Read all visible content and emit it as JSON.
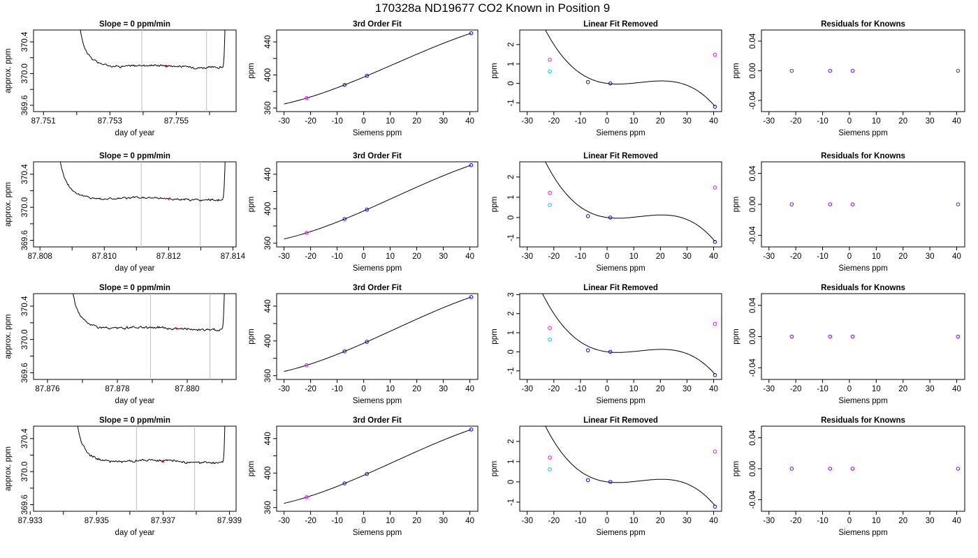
{
  "title": "170328a     ND19677   CO2 Known in Position  9",
  "colors": {
    "trace": "#000000",
    "window_line": "#bebebe",
    "fit_line": "#000000",
    "point_blue": "#0000ff",
    "point_magenta": "#ff00ff",
    "point_cyan": "#00bfff",
    "point_red": "#ff0000",
    "residual_point": "#7f00ff"
  },
  "chart_data": [
    {
      "type": "line",
      "row": 0,
      "panel": "trace",
      "title": "Slope =  0  ppm/min",
      "xlabel": "day of year",
      "ylabel": "approx. ppm",
      "xlim": [
        87.7507,
        87.7568
      ],
      "ylim": [
        369.52,
        370.55
      ],
      "xticks": [
        87.751,
        87.752,
        87.753,
        87.754,
        87.755,
        87.756
      ],
      "xticklabels": [
        "87.751",
        "",
        "87.753",
        "",
        "87.755",
        ""
      ],
      "yticks": [
        369.6,
        369.8,
        370.0,
        370.2,
        370.4
      ],
      "yticklabels": [
        "369.6",
        "",
        "370.0",
        "",
        "370.4"
      ],
      "x_start": 87.752,
      "x_end": 87.7565,
      "window": [
        87.75396,
        87.75591
      ],
      "mean_value": 370.09,
      "mean_x": 87.7547
    },
    {
      "type": "scatter",
      "row": 0,
      "panel": "fit",
      "title": "3rd Order Fit",
      "xlabel": "Siemens ppm",
      "ylabel": "ppm",
      "xlim": [
        -32.8,
        43.0
      ],
      "ylim": [
        355.7,
        454.4
      ],
      "xticks": [
        -30,
        -20,
        -10,
        0,
        10,
        20,
        30,
        40
      ],
      "yticks": [
        360,
        380,
        400,
        420,
        440
      ],
      "yticklabels": [
        "360",
        "",
        "400",
        "",
        "440"
      ],
      "x": [
        -21.5,
        -7.2,
        1.2,
        40.5
      ],
      "y": [
        372.0,
        388.0,
        399.0,
        450.5
      ],
      "point_colors": [
        "magenta",
        "blue",
        "blue",
        "blue"
      ],
      "curve_x_range": [
        -30,
        40.5
      ]
    },
    {
      "type": "scatter",
      "row": 0,
      "panel": "linear",
      "title": "Linear Fit Removed",
      "xlabel": "Siemens ppm",
      "ylabel": "ppm",
      "xlim": [
        -32.8,
        43.0
      ],
      "ylim": [
        -1.45,
        2.75
      ],
      "xticks": [
        -30,
        -20,
        -10,
        0,
        10,
        20,
        30,
        40
      ],
      "yticks": [
        -1,
        0,
        1,
        2
      ],
      "x": [
        -21.5,
        -21.5,
        -7.2,
        1.2,
        40.5,
        40.5
      ],
      "y": [
        1.22,
        0.62,
        0.07,
        0.0,
        -1.2,
        1.48
      ],
      "point_colors": [
        "magenta",
        "cyan",
        "blue",
        "blue",
        "blue",
        "magenta"
      ],
      "curve": {
        "c1": -0.01786,
        "c2": 0.002667,
        "c3": -7.27e-05,
        "x_range": [
          -30,
          40.5
        ]
      }
    },
    {
      "type": "scatter",
      "row": 0,
      "panel": "residuals",
      "title": "Residuals for Knowns",
      "xlabel": "Siemens ppm",
      "ylabel": "ppm",
      "xlim": [
        -32.8,
        43.0
      ],
      "ylim": [
        -0.055,
        0.055
      ],
      "xticks": [
        -30,
        -20,
        -10,
        0,
        10,
        20,
        30,
        40
      ],
      "yticks": [
        -0.04,
        0.0,
        0.04
      ],
      "yticklabels": [
        "-0.04",
        "0.00",
        "0.04"
      ],
      "x": [
        -21.5,
        -7.2,
        1.2,
        40.5
      ],
      "y": [
        0,
        0,
        0,
        0
      ]
    },
    {
      "type": "line",
      "row": 1,
      "panel": "trace",
      "title": "Slope =  0  ppm/min",
      "xlabel": "day of year",
      "ylabel": "approx. ppm",
      "xlim": [
        87.8078,
        87.8141
      ],
      "ylim": [
        369.52,
        370.55
      ],
      "xticks": [
        87.808,
        87.809,
        87.81,
        87.811,
        87.812,
        87.813,
        87.814
      ],
      "xticklabels": [
        "87.808",
        "",
        "87.810",
        "",
        "87.812",
        "",
        "87.814"
      ],
      "yticks": [
        369.6,
        369.8,
        370.0,
        370.2,
        370.4
      ],
      "yticklabels": [
        "369.6",
        "",
        "370.0",
        "",
        "370.4"
      ],
      "x_start": 87.8085,
      "x_end": 87.8138,
      "window": [
        87.81115,
        87.81298
      ],
      "mean_value": 370.1,
      "mean_x": 87.812
    },
    {
      "type": "scatter",
      "row": 1,
      "panel": "fit",
      "title": "3rd Order Fit",
      "xlabel": "Siemens ppm",
      "ylabel": "ppm",
      "xlim": [
        -32.8,
        43.0
      ],
      "ylim": [
        355.7,
        454.4
      ],
      "xticks": [
        -30,
        -20,
        -10,
        0,
        10,
        20,
        30,
        40
      ],
      "yticks": [
        360,
        380,
        400,
        420,
        440
      ],
      "yticklabels": [
        "360",
        "",
        "400",
        "",
        "440"
      ],
      "x": [
        -21.5,
        -7.2,
        1.2,
        40.5
      ],
      "y": [
        372.0,
        388.0,
        399.0,
        450.5
      ],
      "point_colors": [
        "magenta",
        "blue",
        "blue",
        "blue"
      ],
      "curve_x_range": [
        -30,
        40.5
      ]
    },
    {
      "type": "scatter",
      "row": 1,
      "panel": "linear",
      "title": "Linear Fit Removed",
      "xlabel": "Siemens ppm",
      "ylabel": "ppm",
      "xlim": [
        -32.8,
        43.0
      ],
      "ylim": [
        -1.45,
        2.75
      ],
      "xticks": [
        -30,
        -20,
        -10,
        0,
        10,
        20,
        30,
        40
      ],
      "yticks": [
        -1,
        0,
        1,
        2
      ],
      "x": [
        -21.5,
        -21.5,
        -7.2,
        1.2,
        40.5,
        40.5
      ],
      "y": [
        1.22,
        0.62,
        0.07,
        0.0,
        -1.2,
        1.48
      ],
      "point_colors": [
        "magenta",
        "cyan",
        "blue",
        "blue",
        "blue",
        "magenta"
      ],
      "curve": {
        "c1": -0.01786,
        "c2": 0.002667,
        "c3": -7.27e-05,
        "x_range": [
          -30,
          40.5
        ]
      }
    },
    {
      "type": "scatter",
      "row": 1,
      "panel": "residuals",
      "title": "Residuals for Knowns",
      "xlabel": "Siemens ppm",
      "ylabel": "ppm",
      "xlim": [
        -32.8,
        43.0
      ],
      "ylim": [
        -0.055,
        0.055
      ],
      "xticks": [
        -30,
        -20,
        -10,
        0,
        10,
        20,
        30,
        40
      ],
      "yticks": [
        -0.04,
        0.0,
        0.04
      ],
      "yticklabels": [
        "-0.04",
        "0.00",
        "0.04"
      ],
      "x": [
        -21.5,
        -7.2,
        1.2,
        40.5
      ],
      "y": [
        0,
        0,
        0,
        0
      ]
    },
    {
      "type": "line",
      "row": 2,
      "panel": "trace",
      "title": "Slope =  0  ppm/min",
      "xlabel": "day of year",
      "ylabel": "approx. ppm",
      "xlim": [
        87.8756,
        87.8814
      ],
      "ylim": [
        369.52,
        370.55
      ],
      "xticks": [
        87.876,
        87.877,
        87.878,
        87.879,
        87.88,
        87.881
      ],
      "xticklabels": [
        "87.876",
        "",
        "87.878",
        "",
        "87.880",
        ""
      ],
      "yticks": [
        369.6,
        369.8,
        370.0,
        370.2,
        370.4
      ],
      "yticklabels": [
        "369.6",
        "",
        "370.0",
        "",
        "370.4"
      ],
      "x_start": 87.8766,
      "x_end": 87.8811,
      "window": [
        87.87895,
        87.88065
      ],
      "mean_value": 370.13,
      "mean_x": 87.8797
    },
    {
      "type": "scatter",
      "row": 2,
      "panel": "fit",
      "title": "3rd Order Fit",
      "xlabel": "Siemens ppm",
      "ylabel": "ppm",
      "xlim": [
        -32.8,
        43.0
      ],
      "ylim": [
        355.7,
        454.4
      ],
      "xticks": [
        -30,
        -20,
        -10,
        0,
        10,
        20,
        30,
        40
      ],
      "yticks": [
        360,
        380,
        400,
        420,
        440
      ],
      "yticklabels": [
        "360",
        "",
        "400",
        "",
        "440"
      ],
      "x": [
        -21.5,
        -7.2,
        1.2,
        40.5
      ],
      "y": [
        372.0,
        388.0,
        399.0,
        450.5
      ],
      "point_colors": [
        "magenta",
        "blue",
        "blue",
        "blue"
      ],
      "curve_x_range": [
        -30,
        40.5
      ]
    },
    {
      "type": "scatter",
      "row": 2,
      "panel": "linear",
      "title": "Linear Fit Removed",
      "xlabel": "Siemens ppm",
      "ylabel": "ppm",
      "xlim": [
        -32.8,
        43.0
      ],
      "ylim": [
        -1.45,
        3.05
      ],
      "xticks": [
        -30,
        -20,
        -10,
        0,
        10,
        20,
        30,
        40
      ],
      "yticks": [
        -1,
        0,
        1,
        2,
        3
      ],
      "x": [
        -21.5,
        -21.5,
        -7.2,
        1.2,
        40.5,
        40.5
      ],
      "y": [
        1.25,
        0.64,
        0.08,
        0.0,
        -1.22,
        1.45
      ],
      "point_colors": [
        "magenta",
        "cyan",
        "blue",
        "blue",
        "blue",
        "magenta"
      ],
      "curve": {
        "c1": -0.01786,
        "c2": 0.002667,
        "c3": -7.27e-05,
        "x_range": [
          -30,
          40.5
        ]
      }
    },
    {
      "type": "scatter",
      "row": 2,
      "panel": "residuals",
      "title": "Residuals for Knowns",
      "xlabel": "Siemens ppm",
      "ylabel": "ppm",
      "xlim": [
        -32.8,
        43.0
      ],
      "ylim": [
        -0.055,
        0.055
      ],
      "xticks": [
        -30,
        -20,
        -10,
        0,
        10,
        20,
        30,
        40
      ],
      "yticks": [
        -0.04,
        0.0,
        0.04
      ],
      "yticklabels": [
        "-0.04",
        "0.00",
        "0.04"
      ],
      "x": [
        -21.5,
        -7.2,
        1.2,
        40.5
      ],
      "y": [
        0,
        0,
        0,
        0
      ]
    },
    {
      "type": "line",
      "row": 3,
      "panel": "trace",
      "title": "Slope =  0  ppm/min",
      "xlabel": "day of year",
      "ylabel": "approx. ppm",
      "xlim": [
        87.9331,
        87.9392
      ],
      "ylim": [
        369.52,
        370.55
      ],
      "xticks": [
        87.933,
        87.934,
        87.935,
        87.936,
        87.937,
        87.938,
        87.939
      ],
      "xticklabels": [
        "87.933",
        "",
        "87.935",
        "",
        "87.937",
        "",
        "87.939"
      ],
      "yticks": [
        369.6,
        369.8,
        370.0,
        370.2,
        370.4
      ],
      "yticklabels": [
        "369.6",
        "",
        "370.0",
        "",
        "370.4"
      ],
      "x_start": 87.9343,
      "x_end": 87.9389,
      "window": [
        87.9362,
        87.93795
      ],
      "mean_value": 370.12,
      "mean_x": 87.937
    },
    {
      "type": "scatter",
      "row": 3,
      "panel": "fit",
      "title": "3rd Order Fit",
      "xlabel": "Siemens ppm",
      "ylabel": "ppm",
      "xlim": [
        -32.8,
        43.0
      ],
      "ylim": [
        355.7,
        454.4
      ],
      "xticks": [
        -30,
        -20,
        -10,
        0,
        10,
        20,
        30,
        40
      ],
      "yticks": [
        360,
        380,
        400,
        420,
        440
      ],
      "yticklabels": [
        "360",
        "",
        "400",
        "",
        "440"
      ],
      "x": [
        -21.5,
        -7.2,
        1.2,
        40.5
      ],
      "y": [
        372.0,
        388.0,
        399.0,
        450.5
      ],
      "point_colors": [
        "magenta",
        "blue",
        "blue",
        "blue"
      ],
      "curve_x_range": [
        -30,
        40.5
      ]
    },
    {
      "type": "scatter",
      "row": 3,
      "panel": "linear",
      "title": "Linear Fit Removed",
      "xlabel": "Siemens ppm",
      "ylabel": "ppm",
      "xlim": [
        -32.8,
        43.0
      ],
      "ylim": [
        -1.45,
        2.75
      ],
      "xticks": [
        -30,
        -20,
        -10,
        0,
        10,
        20,
        30,
        40
      ],
      "yticks": [
        -1,
        0,
        1,
        2
      ],
      "x": [
        -21.5,
        -21.5,
        -7.2,
        1.2,
        40.5,
        40.5
      ],
      "y": [
        1.2,
        0.62,
        0.09,
        0.0,
        -1.22,
        1.5
      ],
      "point_colors": [
        "magenta",
        "cyan",
        "blue",
        "blue",
        "blue",
        "magenta"
      ],
      "curve": {
        "c1": -0.01786,
        "c2": 0.002667,
        "c3": -7.27e-05,
        "x_range": [
          -30,
          40.5
        ]
      }
    },
    {
      "type": "scatter",
      "row": 3,
      "panel": "residuals",
      "title": "Residuals for Knowns",
      "xlabel": "Siemens ppm",
      "ylabel": "ppm",
      "xlim": [
        -32.8,
        43.0
      ],
      "ylim": [
        -0.055,
        0.055
      ],
      "xticks": [
        -30,
        -20,
        -10,
        0,
        10,
        20,
        30,
        40
      ],
      "yticks": [
        -0.04,
        0.0,
        0.04
      ],
      "yticklabels": [
        "-0.04",
        "0.00",
        "0.04"
      ],
      "x": [
        -21.5,
        -7.2,
        1.2,
        40.5
      ],
      "y": [
        0,
        0,
        0,
        0
      ]
    }
  ]
}
